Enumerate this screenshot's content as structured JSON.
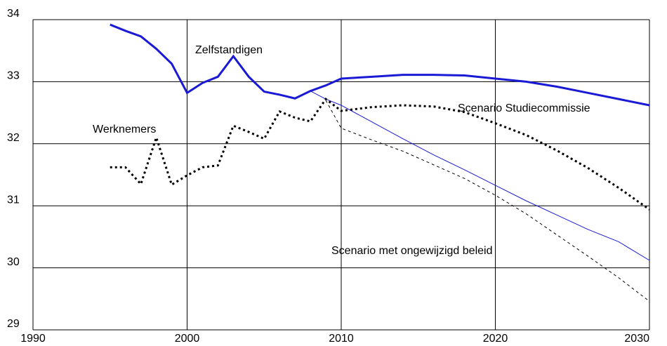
{
  "chart_data": {
    "type": "line",
    "xlim": [
      1990,
      2030
    ],
    "xticks": [
      1990,
      2000,
      2010,
      2020,
      2030
    ],
    "ylim": [
      29,
      34
    ],
    "yticks": [
      29,
      30,
      31,
      32,
      33,
      34
    ],
    "grid": true,
    "annotations": [
      "Zelfstandigen",
      "Werknemers",
      "Scenario Studiecommissie",
      "Scenario met ongewijzigd beleid"
    ],
    "series": [
      {
        "color": "#1a1ad6",
        "width": 3,
        "dash": "solid",
        "x": [
          1995,
          1996,
          1997,
          1998,
          1999,
          2000,
          2001,
          2002,
          2003,
          2004,
          2005,
          2006,
          2007,
          2008,
          2009,
          2010,
          2012,
          2014,
          2016,
          2018,
          2020,
          2022,
          2024,
          2026,
          2028,
          2030
        ],
        "values": [
          33.92,
          33.82,
          33.73,
          33.53,
          33.29,
          32.82,
          32.98,
          33.08,
          33.41,
          33.08,
          32.84,
          32.79,
          32.73,
          32.85,
          32.94,
          33.05,
          33.08,
          33.11,
          33.11,
          33.1,
          33.05,
          33.0,
          32.92,
          32.82,
          32.72,
          32.62
        ]
      },
      {
        "color": "#1a1ad6",
        "width": 1,
        "dash": "solid",
        "x": [
          2008,
          2009,
          2010,
          2012,
          2014,
          2016,
          2018,
          2020,
          2022,
          2024,
          2026,
          2028,
          2030
        ],
        "values": [
          32.85,
          32.72,
          32.62,
          32.35,
          32.08,
          31.82,
          31.58,
          31.33,
          31.08,
          30.85,
          30.62,
          30.42,
          30.12
        ]
      },
      {
        "color": "#000000",
        "width": 3,
        "dash": "dotted",
        "x": [
          1995,
          1996,
          1997,
          1998,
          1999,
          2000,
          2001,
          2002,
          2003,
          2004,
          2005,
          2006,
          2007,
          2008,
          2009,
          2010,
          2012,
          2014,
          2016,
          2018,
          2020,
          2022,
          2024,
          2026,
          2028,
          2030
        ],
        "values": [
          31.62,
          31.62,
          31.35,
          32.1,
          31.34,
          31.49,
          31.62,
          31.65,
          32.29,
          32.19,
          32.08,
          32.52,
          32.42,
          32.36,
          32.72,
          32.53,
          32.59,
          32.62,
          32.6,
          32.51,
          32.33,
          32.14,
          31.89,
          31.61,
          31.29,
          30.94
        ]
      },
      {
        "color": "#000000",
        "width": 1,
        "dash": "dashed",
        "x": [
          2009,
          2010,
          2012,
          2014,
          2016,
          2018,
          2020,
          2022,
          2024,
          2026,
          2028,
          2030
        ],
        "values": [
          32.7,
          32.25,
          32.06,
          31.88,
          31.66,
          31.44,
          31.17,
          30.87,
          30.53,
          30.19,
          29.84,
          29.46
        ]
      }
    ]
  }
}
